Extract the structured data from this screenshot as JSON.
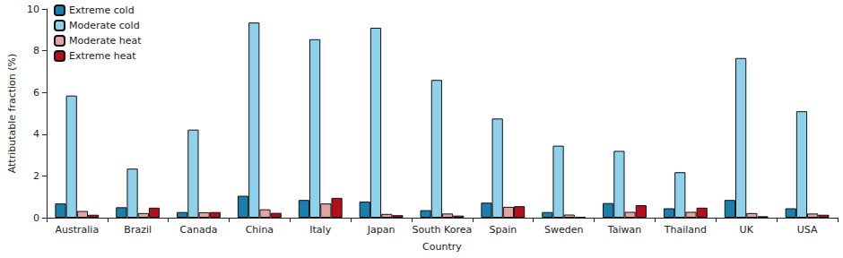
{
  "chart_data": {
    "type": "bar",
    "x_label": "Country",
    "y_label": "Attributable fraction (%)",
    "categories": [
      "Australia",
      "Brazil",
      "Canada",
      "China",
      "Italy",
      "Japan",
      "South Korea",
      "Spain",
      "Sweden",
      "Taiwan",
      "Thailand",
      "UK",
      "USA"
    ],
    "series": [
      {
        "name": "Extreme cold",
        "color": "#1b7fae",
        "values": [
          0.68,
          0.5,
          0.27,
          1.05,
          0.85,
          0.77,
          0.36,
          0.72,
          0.27,
          0.7,
          0.45,
          0.85,
          0.45
        ]
      },
      {
        "name": "Moderate cold",
        "color": "#8fd0ea",
        "values": [
          5.85,
          2.35,
          4.22,
          9.35,
          8.55,
          9.1,
          6.6,
          4.75,
          3.45,
          3.2,
          2.18,
          7.65,
          5.1
        ]
      },
      {
        "name": "Moderate heat",
        "color": "#e4a3a3",
        "values": [
          0.32,
          0.22,
          0.26,
          0.4,
          0.68,
          0.18,
          0.2,
          0.52,
          0.15,
          0.28,
          0.28,
          0.22,
          0.2
        ]
      },
      {
        "name": "Extreme heat",
        "color": "#b3101c",
        "values": [
          0.14,
          0.48,
          0.27,
          0.23,
          0.95,
          0.12,
          0.1,
          0.55,
          0.03,
          0.6,
          0.48,
          0.07,
          0.14
        ]
      }
    ],
    "ylim": [
      0,
      10
    ],
    "yticks": [
      0,
      2,
      4,
      6,
      8,
      10
    ],
    "grid": false,
    "legend": "upper left"
  }
}
